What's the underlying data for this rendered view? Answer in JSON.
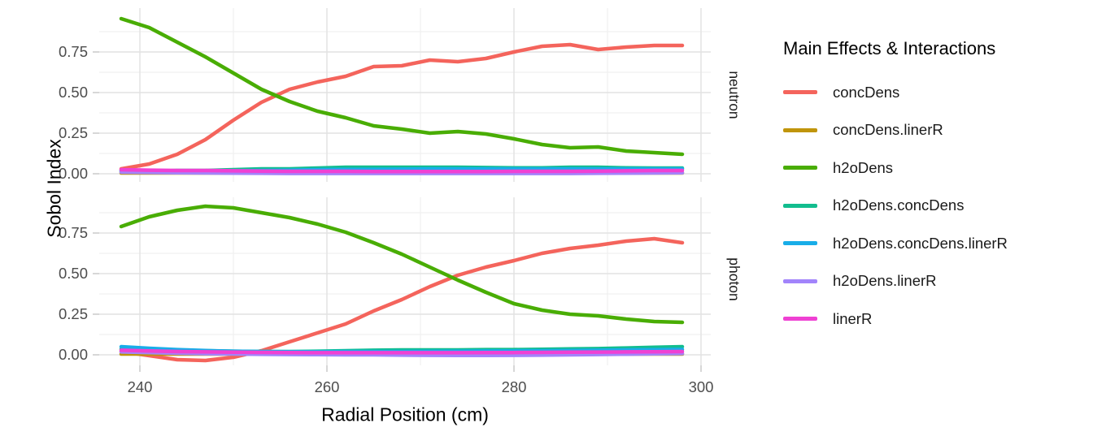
{
  "chart_data": {
    "type": "line",
    "title": "",
    "xlabel": "Radial Position (cm)",
    "ylabel": "Sobol Index",
    "legend_title": "Main Effects & Interactions",
    "legend_position": "right",
    "grid": true,
    "xlim": [
      235.7,
      300.9
    ],
    "ylim": [
      -0.05,
      1.02
    ],
    "x_ticks": {
      "major": [
        240,
        260,
        280,
        300
      ],
      "minor": [
        250,
        270,
        290
      ],
      "labels": [
        "240",
        "260",
        "280",
        "300"
      ]
    },
    "y_ticks": {
      "major": [
        0,
        0.25,
        0.5,
        0.75
      ],
      "minor": [
        0.125,
        0.375,
        0.625,
        0.875
      ],
      "labels": [
        "0.00",
        "0.25",
        "0.50",
        "0.75"
      ]
    },
    "x": [
      238,
      241,
      244,
      247,
      250,
      253,
      256,
      259,
      262,
      265,
      268,
      271,
      274,
      277,
      280,
      283,
      286,
      289,
      292,
      295,
      298
    ],
    "facets": [
      {
        "label": "neutron",
        "series": [
          {
            "name": "concDens",
            "color": "#F4645C",
            "values": [
              0.03,
              0.06,
              0.12,
              0.21,
              0.33,
              0.44,
              0.52,
              0.565,
              0.6,
              0.66,
              0.665,
              0.7,
              0.69,
              0.71,
              0.75,
              0.785,
              0.795,
              0.765,
              0.78,
              0.79,
              0.79
            ]
          },
          {
            "name": "concDens.linerR",
            "color": "#C0950B",
            "values": [
              0.005,
              0.005,
              0.005,
              0.005,
              0.005,
              0.005,
              0.005,
              0.005,
              0.005,
              0.005,
              0.005,
              0.005,
              0.005,
              0.005,
              0.005,
              0.005,
              0.005,
              0.005,
              0.005,
              0.005,
              0.005
            ]
          },
          {
            "name": "h2oDens",
            "color": "#49AD04",
            "values": [
              0.955,
              0.9,
              0.81,
              0.72,
              0.62,
              0.52,
              0.445,
              0.385,
              0.345,
              0.295,
              0.275,
              0.25,
              0.26,
              0.245,
              0.215,
              0.18,
              0.16,
              0.165,
              0.14,
              0.13,
              0.12
            ]
          },
          {
            "name": "h2oDens.concDens",
            "color": "#12BD8E",
            "values": [
              0.015,
              0.015,
              0.02,
              0.02,
              0.025,
              0.03,
              0.03,
              0.035,
              0.04,
              0.04,
              0.04,
              0.04,
              0.04,
              0.038,
              0.036,
              0.036,
              0.04,
              0.04,
              0.036,
              0.035,
              0.035
            ]
          },
          {
            "name": "h2oDens.concDens.linerR",
            "color": "#18ADE8",
            "values": [
              0.02,
              0.018,
              0.016,
              0.015,
              0.018,
              0.02,
              0.022,
              0.025,
              0.026,
              0.027,
              0.028,
              0.03,
              0.03,
              0.03,
              0.03,
              0.03,
              0.03,
              0.03,
              0.03,
              0.03,
              0.03
            ]
          },
          {
            "name": "h2oDens.linerR",
            "color": "#A284FB",
            "values": [
              0.01,
              0.008,
              0.006,
              0.005,
              0.004,
              0.003,
              0.002,
              0.002,
              0.002,
              0.002,
              0.002,
              0.002,
              0.002,
              0.002,
              0.002,
              0.002,
              0.002,
              0.003,
              0.004,
              0.005,
              0.006
            ]
          },
          {
            "name": "linerR",
            "color": "#EF41D3",
            "values": [
              0.025,
              0.022,
              0.02,
              0.02,
              0.018,
              0.016,
              0.015,
              0.015,
              0.015,
              0.014,
              0.014,
              0.014,
              0.014,
              0.014,
              0.015,
              0.015,
              0.015,
              0.016,
              0.018,
              0.02,
              0.02
            ]
          }
        ]
      },
      {
        "label": "photon",
        "series": [
          {
            "name": "concDens",
            "color": "#F4645C",
            "values": [
              0.02,
              -0.005,
              -0.03,
              -0.035,
              -0.015,
              0.025,
              0.08,
              0.135,
              0.19,
              0.27,
              0.34,
              0.42,
              0.49,
              0.54,
              0.58,
              0.625,
              0.655,
              0.675,
              0.7,
              0.715,
              0.69
            ]
          },
          {
            "name": "concDens.linerR",
            "color": "#C0950B",
            "values": [
              0.005,
              0.005,
              0.005,
              0.005,
              0.005,
              0.005,
              0.005,
              0.005,
              0.005,
              0.005,
              0.005,
              0.005,
              0.005,
              0.005,
              0.005,
              0.005,
              0.005,
              0.005,
              0.005,
              0.005,
              0.005
            ]
          },
          {
            "name": "h2oDens",
            "color": "#49AD04",
            "values": [
              0.79,
              0.85,
              0.89,
              0.915,
              0.905,
              0.875,
              0.845,
              0.805,
              0.755,
              0.69,
              0.62,
              0.54,
              0.46,
              0.385,
              0.315,
              0.275,
              0.25,
              0.24,
              0.22,
              0.205,
              0.2
            ]
          },
          {
            "name": "h2oDens.concDens",
            "color": "#12BD8E",
            "values": [
              0.035,
              0.03,
              0.028,
              0.025,
              0.022,
              0.02,
              0.02,
              0.022,
              0.025,
              0.028,
              0.03,
              0.03,
              0.03,
              0.032,
              0.032,
              0.034,
              0.036,
              0.038,
              0.042,
              0.046,
              0.05
            ]
          },
          {
            "name": "h2oDens.concDens.linerR",
            "color": "#18ADE8",
            "values": [
              0.05,
              0.04,
              0.032,
              0.026,
              0.022,
              0.02,
              0.019,
              0.019,
              0.02,
              0.02,
              0.02,
              0.021,
              0.022,
              0.023,
              0.024,
              0.025,
              0.026,
              0.028,
              0.03,
              0.031,
              0.033
            ]
          },
          {
            "name": "h2oDens.linerR",
            "color": "#A284FB",
            "values": [
              0.018,
              0.014,
              0.01,
              0.007,
              0.005,
              0.003,
              0.002,
              0.001,
              0.0,
              0.0,
              -0.002,
              -0.003,
              -0.004,
              -0.004,
              -0.003,
              -0.002,
              0.0,
              0.002,
              0.004,
              0.006,
              0.008
            ]
          },
          {
            "name": "linerR",
            "color": "#EF41D3",
            "values": [
              0.028,
              0.024,
              0.02,
              0.018,
              0.016,
              0.015,
              0.014,
              0.013,
              0.013,
              0.013,
              0.013,
              0.013,
              0.013,
              0.014,
              0.014,
              0.015,
              0.016,
              0.017,
              0.018,
              0.019,
              0.02
            ]
          }
        ]
      }
    ],
    "style_colors": {
      "grid_major": "#E2E2E2",
      "grid_minor": "#EDEDED",
      "tick_mark": "#C6C6C6",
      "tick_label": "#4D4D4D",
      "axis_title": "#000000",
      "facet_label": "#1A1A1A",
      "background": "#FFFFFF"
    }
  }
}
